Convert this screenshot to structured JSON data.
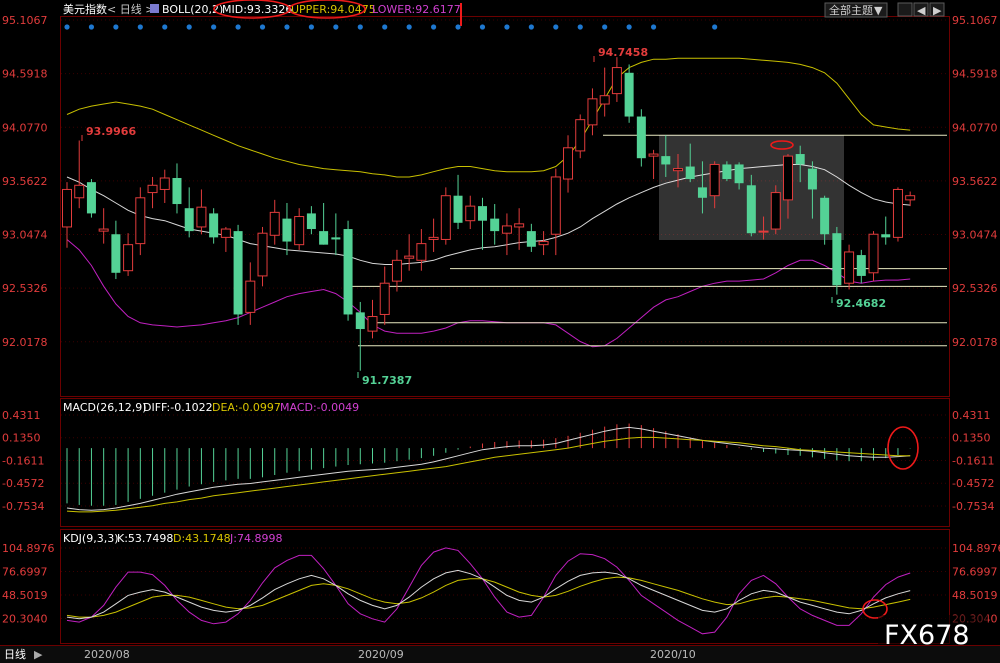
{
  "header": {
    "symbol": "美元指数",
    "period_prefix": "< 日线 >",
    "boll_label": "BOLL(20,2)",
    "mid_label": "MID:93.3326",
    "upper_label": "UPPER:94.0475",
    "lower_label": "LOWER:92.6177",
    "theme_button": "全部主题"
  },
  "macd_header": {
    "title": "MACD(26,12,9)",
    "diff": "DIFF:-0.1022",
    "dea": "DEA:-0.0997",
    "macd": "MACD:-0.0049"
  },
  "kdj_header": {
    "title": "KDJ(9,3,3)",
    "k": "K:53.7498",
    "d": "D:43.1748",
    "j": "J:74.8998"
  },
  "bottom": {
    "period_tab": "日线",
    "x_labels": [
      "2020/08",
      "2020/09",
      "2020/10"
    ],
    "watermark": "FX678"
  },
  "colors": {
    "up": "#e23c3c",
    "down": "#54d296",
    "mid_line": "#d8d8d8",
    "upper_line": "#c8c000",
    "lower_line": "#c020c0",
    "grid": "#3a0000",
    "marker_dots": "#1e78d0"
  },
  "chart_data": [
    {
      "type": "candlestick",
      "title": "美元指数 日线 BOLL(20,2)",
      "y_ticks": [
        "95.1067",
        "94.5918",
        "94.0770",
        "93.5622",
        "93.0474",
        "92.5326",
        "92.0178"
      ],
      "annotations": {
        "high_1": "93.9966",
        "high_2": "94.7458",
        "low_1": "91.7387",
        "low_2": "92.4682"
      },
      "ohlc": [
        [
          93.12,
          93.55,
          92.92,
          93.48
        ],
        [
          93.4,
          93.95,
          93.3,
          93.52
        ],
        [
          93.55,
          93.58,
          93.21,
          93.25
        ],
        [
          93.08,
          93.3,
          92.96,
          93.1
        ],
        [
          93.05,
          93.18,
          92.62,
          92.68
        ],
        [
          92.7,
          93.06,
          92.65,
          92.95
        ],
        [
          92.96,
          93.5,
          92.85,
          93.4
        ],
        [
          93.45,
          93.6,
          93.3,
          93.52
        ],
        [
          93.48,
          93.67,
          93.35,
          93.59
        ],
        [
          93.59,
          93.73,
          93.25,
          93.34
        ],
        [
          93.3,
          93.5,
          93.02,
          93.08
        ],
        [
          93.12,
          93.48,
          93.05,
          93.31
        ],
        [
          93.25,
          93.3,
          92.96,
          93.02
        ],
        [
          93.02,
          93.12,
          92.88,
          93.1
        ],
        [
          93.08,
          93.14,
          92.18,
          92.28
        ],
        [
          92.3,
          92.78,
          92.18,
          92.6
        ],
        [
          92.65,
          93.12,
          92.55,
          93.06
        ],
        [
          93.04,
          93.38,
          92.95,
          93.26
        ],
        [
          93.2,
          93.35,
          92.85,
          92.98
        ],
        [
          92.95,
          93.3,
          92.9,
          93.22
        ],
        [
          93.25,
          93.32,
          93.05,
          93.1
        ],
        [
          93.08,
          93.35,
          92.95,
          92.95
        ],
        [
          93.02,
          93.25,
          92.85,
          93.0
        ],
        [
          93.1,
          93.18,
          92.22,
          92.28
        ],
        [
          92.3,
          92.4,
          91.74,
          92.14
        ],
        [
          92.12,
          92.42,
          92.05,
          92.26
        ],
        [
          92.28,
          92.74,
          92.18,
          92.58
        ],
        [
          92.6,
          92.9,
          92.5,
          92.8
        ],
        [
          92.82,
          93.05,
          92.7,
          92.84
        ],
        [
          92.8,
          93.1,
          92.7,
          92.96
        ],
        [
          93.0,
          93.2,
          92.88,
          93.02
        ],
        [
          93.0,
          93.5,
          92.95,
          93.42
        ],
        [
          93.42,
          93.62,
          93.1,
          93.16
        ],
        [
          93.18,
          93.42,
          93.1,
          93.32
        ],
        [
          93.32,
          93.4,
          92.9,
          93.18
        ],
        [
          93.2,
          93.34,
          92.95,
          93.08
        ],
        [
          93.06,
          93.25,
          92.85,
          93.13
        ],
        [
          93.12,
          93.3,
          92.9,
          93.15
        ],
        [
          93.08,
          93.15,
          92.88,
          92.93
        ],
        [
          92.95,
          93.08,
          92.85,
          92.98
        ],
        [
          93.05,
          93.68,
          92.85,
          93.6
        ],
        [
          93.58,
          94.0,
          93.45,
          93.88
        ],
        [
          93.85,
          94.2,
          93.78,
          94.15
        ],
        [
          94.1,
          94.45,
          94.0,
          94.35
        ],
        [
          94.3,
          94.65,
          94.18,
          94.38
        ],
        [
          94.4,
          94.75,
          94.32,
          94.65
        ],
        [
          94.6,
          94.68,
          94.12,
          94.18
        ],
        [
          94.18,
          94.25,
          93.7,
          93.78
        ],
        [
          93.8,
          93.86,
          93.58,
          93.82
        ],
        [
          93.8,
          94.0,
          93.6,
          93.72
        ],
        [
          93.66,
          93.82,
          93.5,
          93.68
        ],
        [
          93.7,
          93.92,
          93.55,
          93.58
        ],
        [
          93.5,
          93.75,
          93.25,
          93.4
        ],
        [
          93.42,
          93.75,
          93.3,
          93.72
        ],
        [
          93.72,
          93.75,
          93.56,
          93.58
        ],
        [
          93.72,
          93.74,
          93.48,
          93.54
        ],
        [
          93.52,
          93.62,
          93.03,
          93.06
        ],
        [
          93.08,
          93.22,
          93.0,
          93.08
        ],
        [
          93.1,
          93.52,
          93.05,
          93.45
        ],
        [
          93.38,
          93.82,
          93.2,
          93.8
        ],
        [
          93.82,
          93.9,
          93.55,
          93.72
        ],
        [
          93.68,
          93.75,
          93.2,
          93.48
        ],
        [
          93.4,
          93.42,
          92.95,
          93.05
        ],
        [
          93.06,
          93.12,
          92.47,
          92.56
        ],
        [
          92.58,
          92.95,
          92.52,
          92.88
        ],
        [
          92.85,
          92.9,
          92.58,
          92.65
        ],
        [
          92.68,
          93.08,
          92.6,
          93.05
        ],
        [
          93.05,
          93.22,
          92.95,
          93.02
        ],
        [
          93.02,
          93.5,
          92.98,
          93.48
        ],
        [
          93.38,
          93.46,
          93.32,
          93.42
        ]
      ],
      "boll_mid": [
        93.6,
        93.55,
        93.48,
        93.42,
        93.35,
        93.28,
        93.23,
        93.2,
        93.18,
        93.14,
        93.1,
        93.08,
        93.06,
        93.04,
        93.0,
        92.96,
        92.94,
        92.92,
        92.9,
        92.89,
        92.88,
        92.87,
        92.86,
        92.84,
        92.8,
        92.77,
        92.76,
        92.76,
        92.77,
        92.78,
        92.8,
        92.84,
        92.87,
        92.9,
        92.92,
        92.93,
        92.95,
        92.97,
        92.98,
        92.99,
        93.02,
        93.06,
        93.12,
        93.2,
        93.27,
        93.34,
        93.4,
        93.45,
        93.5,
        93.54,
        93.57,
        93.6,
        93.62,
        93.64,
        93.66,
        93.68,
        93.69,
        93.7,
        93.71,
        93.72,
        93.72,
        93.7,
        93.67,
        93.6,
        93.52,
        93.45,
        93.39,
        93.36,
        93.34,
        93.33
      ],
      "boll_upper": [
        94.2,
        94.25,
        94.28,
        94.3,
        94.32,
        94.3,
        94.28,
        94.25,
        94.2,
        94.15,
        94.1,
        94.05,
        94.0,
        93.95,
        93.9,
        93.86,
        93.82,
        93.78,
        93.75,
        93.72,
        93.7,
        93.68,
        93.67,
        93.66,
        93.65,
        93.63,
        93.62,
        93.6,
        93.6,
        93.62,
        93.65,
        93.68,
        93.7,
        93.7,
        93.68,
        93.66,
        93.65,
        93.65,
        93.65,
        93.66,
        93.7,
        93.8,
        93.95,
        94.15,
        94.35,
        94.55,
        94.65,
        94.7,
        94.73,
        94.73,
        94.74,
        94.74,
        94.74,
        94.74,
        94.74,
        94.74,
        94.73,
        94.72,
        94.71,
        94.7,
        94.68,
        94.65,
        94.6,
        94.5,
        94.35,
        94.2,
        94.1,
        94.08,
        94.06,
        94.05
      ],
      "boll_lower": [
        93.0,
        92.9,
        92.75,
        92.55,
        92.38,
        92.26,
        92.2,
        92.18,
        92.17,
        92.16,
        92.17,
        92.18,
        92.2,
        92.22,
        92.25,
        92.3,
        92.35,
        92.4,
        92.45,
        92.48,
        92.5,
        92.52,
        92.48,
        92.4,
        92.3,
        92.18,
        92.12,
        92.1,
        92.1,
        92.1,
        92.12,
        92.15,
        92.2,
        92.22,
        92.22,
        92.21,
        92.2,
        92.2,
        92.2,
        92.2,
        92.18,
        92.1,
        92.02,
        91.97,
        91.98,
        92.05,
        92.15,
        92.25,
        92.35,
        92.42,
        92.45,
        92.5,
        92.55,
        92.58,
        92.6,
        92.6,
        92.61,
        92.62,
        92.68,
        92.75,
        92.8,
        92.8,
        92.75,
        92.68,
        92.6,
        92.58,
        92.6,
        92.61,
        92.61,
        92.62
      ]
    },
    {
      "type": "bar",
      "title": "MACD(26,12,9)",
      "y_ticks": [
        "0.4311",
        "0.1350",
        "-0.1611",
        "-0.4572",
        "-0.7534"
      ],
      "series": [
        {
          "name": "MACD",
          "values": [
            -0.72,
            -0.74,
            -0.75,
            -0.75,
            -0.74,
            -0.7,
            -0.66,
            -0.62,
            -0.58,
            -0.54,
            -0.5,
            -0.47,
            -0.44,
            -0.42,
            -0.4,
            -0.4,
            -0.38,
            -0.35,
            -0.32,
            -0.3,
            -0.28,
            -0.26,
            -0.24,
            -0.22,
            -0.21,
            -0.2,
            -0.19,
            -0.17,
            -0.15,
            -0.13,
            -0.1,
            -0.06,
            -0.02,
            0.02,
            0.06,
            0.08,
            0.09,
            0.1,
            0.1,
            0.11,
            0.13,
            0.16,
            0.2,
            0.24,
            0.28,
            0.31,
            0.32,
            0.3,
            0.26,
            0.22,
            0.18,
            0.14,
            0.1,
            0.07,
            0.04,
            0.01,
            -0.02,
            -0.05,
            -0.07,
            -0.09,
            -0.1,
            -0.12,
            -0.14,
            -0.16,
            -0.17,
            -0.17,
            -0.16,
            -0.13,
            -0.09,
            -0.005
          ]
        },
        {
          "name": "DIFF",
          "values": [
            -0.78,
            -0.8,
            -0.81,
            -0.8,
            -0.78,
            -0.75,
            -0.72,
            -0.68,
            -0.64,
            -0.6,
            -0.57,
            -0.54,
            -0.51,
            -0.49,
            -0.47,
            -0.46,
            -0.44,
            -0.42,
            -0.4,
            -0.38,
            -0.36,
            -0.34,
            -0.32,
            -0.3,
            -0.29,
            -0.28,
            -0.27,
            -0.25,
            -0.23,
            -0.21,
            -0.18,
            -0.14,
            -0.1,
            -0.06,
            -0.02,
            0.0,
            0.02,
            0.03,
            0.03,
            0.04,
            0.06,
            0.1,
            0.14,
            0.18,
            0.22,
            0.25,
            0.27,
            0.25,
            0.22,
            0.19,
            0.16,
            0.13,
            0.1,
            0.08,
            0.06,
            0.04,
            0.02,
            0.0,
            -0.01,
            -0.02,
            -0.03,
            -0.04,
            -0.06,
            -0.08,
            -0.1,
            -0.11,
            -0.12,
            -0.12,
            -0.11,
            -0.1
          ]
        },
        {
          "name": "DEA",
          "values": [
            -0.82,
            -0.83,
            -0.83,
            -0.82,
            -0.81,
            -0.79,
            -0.77,
            -0.75,
            -0.72,
            -0.7,
            -0.67,
            -0.65,
            -0.62,
            -0.6,
            -0.58,
            -0.56,
            -0.54,
            -0.52,
            -0.5,
            -0.48,
            -0.46,
            -0.44,
            -0.42,
            -0.4,
            -0.38,
            -0.36,
            -0.34,
            -0.32,
            -0.3,
            -0.28,
            -0.26,
            -0.24,
            -0.21,
            -0.18,
            -0.15,
            -0.12,
            -0.1,
            -0.08,
            -0.06,
            -0.04,
            -0.02,
            0.0,
            0.03,
            0.06,
            0.09,
            0.11,
            0.13,
            0.14,
            0.14,
            0.13,
            0.12,
            0.11,
            0.1,
            0.09,
            0.08,
            0.07,
            0.05,
            0.03,
            0.02,
            0.0,
            -0.02,
            -0.03,
            -0.04,
            -0.05,
            -0.06,
            -0.07,
            -0.08,
            -0.09,
            -0.1,
            -0.1
          ]
        }
      ]
    },
    {
      "type": "line",
      "title": "KDJ(9,3,3)",
      "y_ticks": [
        "104.8976",
        "76.6997",
        "48.5019",
        "20.3040"
      ],
      "series": [
        {
          "name": "K",
          "values": [
            22,
            20,
            22,
            28,
            38,
            48,
            52,
            55,
            52,
            46,
            40,
            34,
            30,
            28,
            30,
            36,
            45,
            55,
            62,
            68,
            72,
            68,
            60,
            50,
            42,
            36,
            32,
            36,
            46,
            58,
            68,
            75,
            78,
            74,
            68,
            58,
            48,
            42,
            40,
            46,
            56,
            65,
            72,
            75,
            76,
            74,
            68,
            60,
            54,
            48,
            42,
            36,
            30,
            28,
            32,
            42,
            50,
            54,
            52,
            46,
            40,
            36,
            32,
            28,
            26,
            30,
            38,
            45,
            50,
            53.75
          ]
        },
        {
          "name": "D",
          "values": [
            24,
            22,
            22,
            24,
            28,
            34,
            40,
            46,
            48,
            48,
            46,
            42,
            38,
            34,
            32,
            33,
            36,
            42,
            48,
            54,
            60,
            62,
            60,
            56,
            50,
            44,
            40,
            38,
            40,
            45,
            52,
            60,
            66,
            68,
            68,
            64,
            58,
            52,
            48,
            46,
            48,
            53,
            59,
            64,
            68,
            70,
            69,
            66,
            62,
            58,
            54,
            49,
            44,
            40,
            37,
            38,
            42,
            45,
            47,
            46,
            44,
            42,
            39,
            36,
            33,
            32,
            34,
            37,
            40,
            43.17
          ]
        },
        {
          "name": "J",
          "values": [
            18,
            16,
            22,
            36,
            58,
            76,
            76,
            73,
            60,
            42,
            28,
            18,
            14,
            16,
            26,
            42,
            63,
            81,
            90,
            96,
            96,
            80,
            60,
            38,
            26,
            20,
            16,
            32,
            58,
            84,
            100,
            105,
            102,
            86,
            68,
            46,
            28,
            22,
            24,
            46,
            72,
            89,
            98,
            97,
            92,
            82,
            66,
            48,
            38,
            28,
            18,
            10,
            2,
            4,
            22,
            50,
            66,
            72,
            62,
            46,
            32,
            24,
            18,
            12,
            12,
            26,
            46,
            61,
            70,
            74.9
          ]
        }
      ]
    }
  ]
}
